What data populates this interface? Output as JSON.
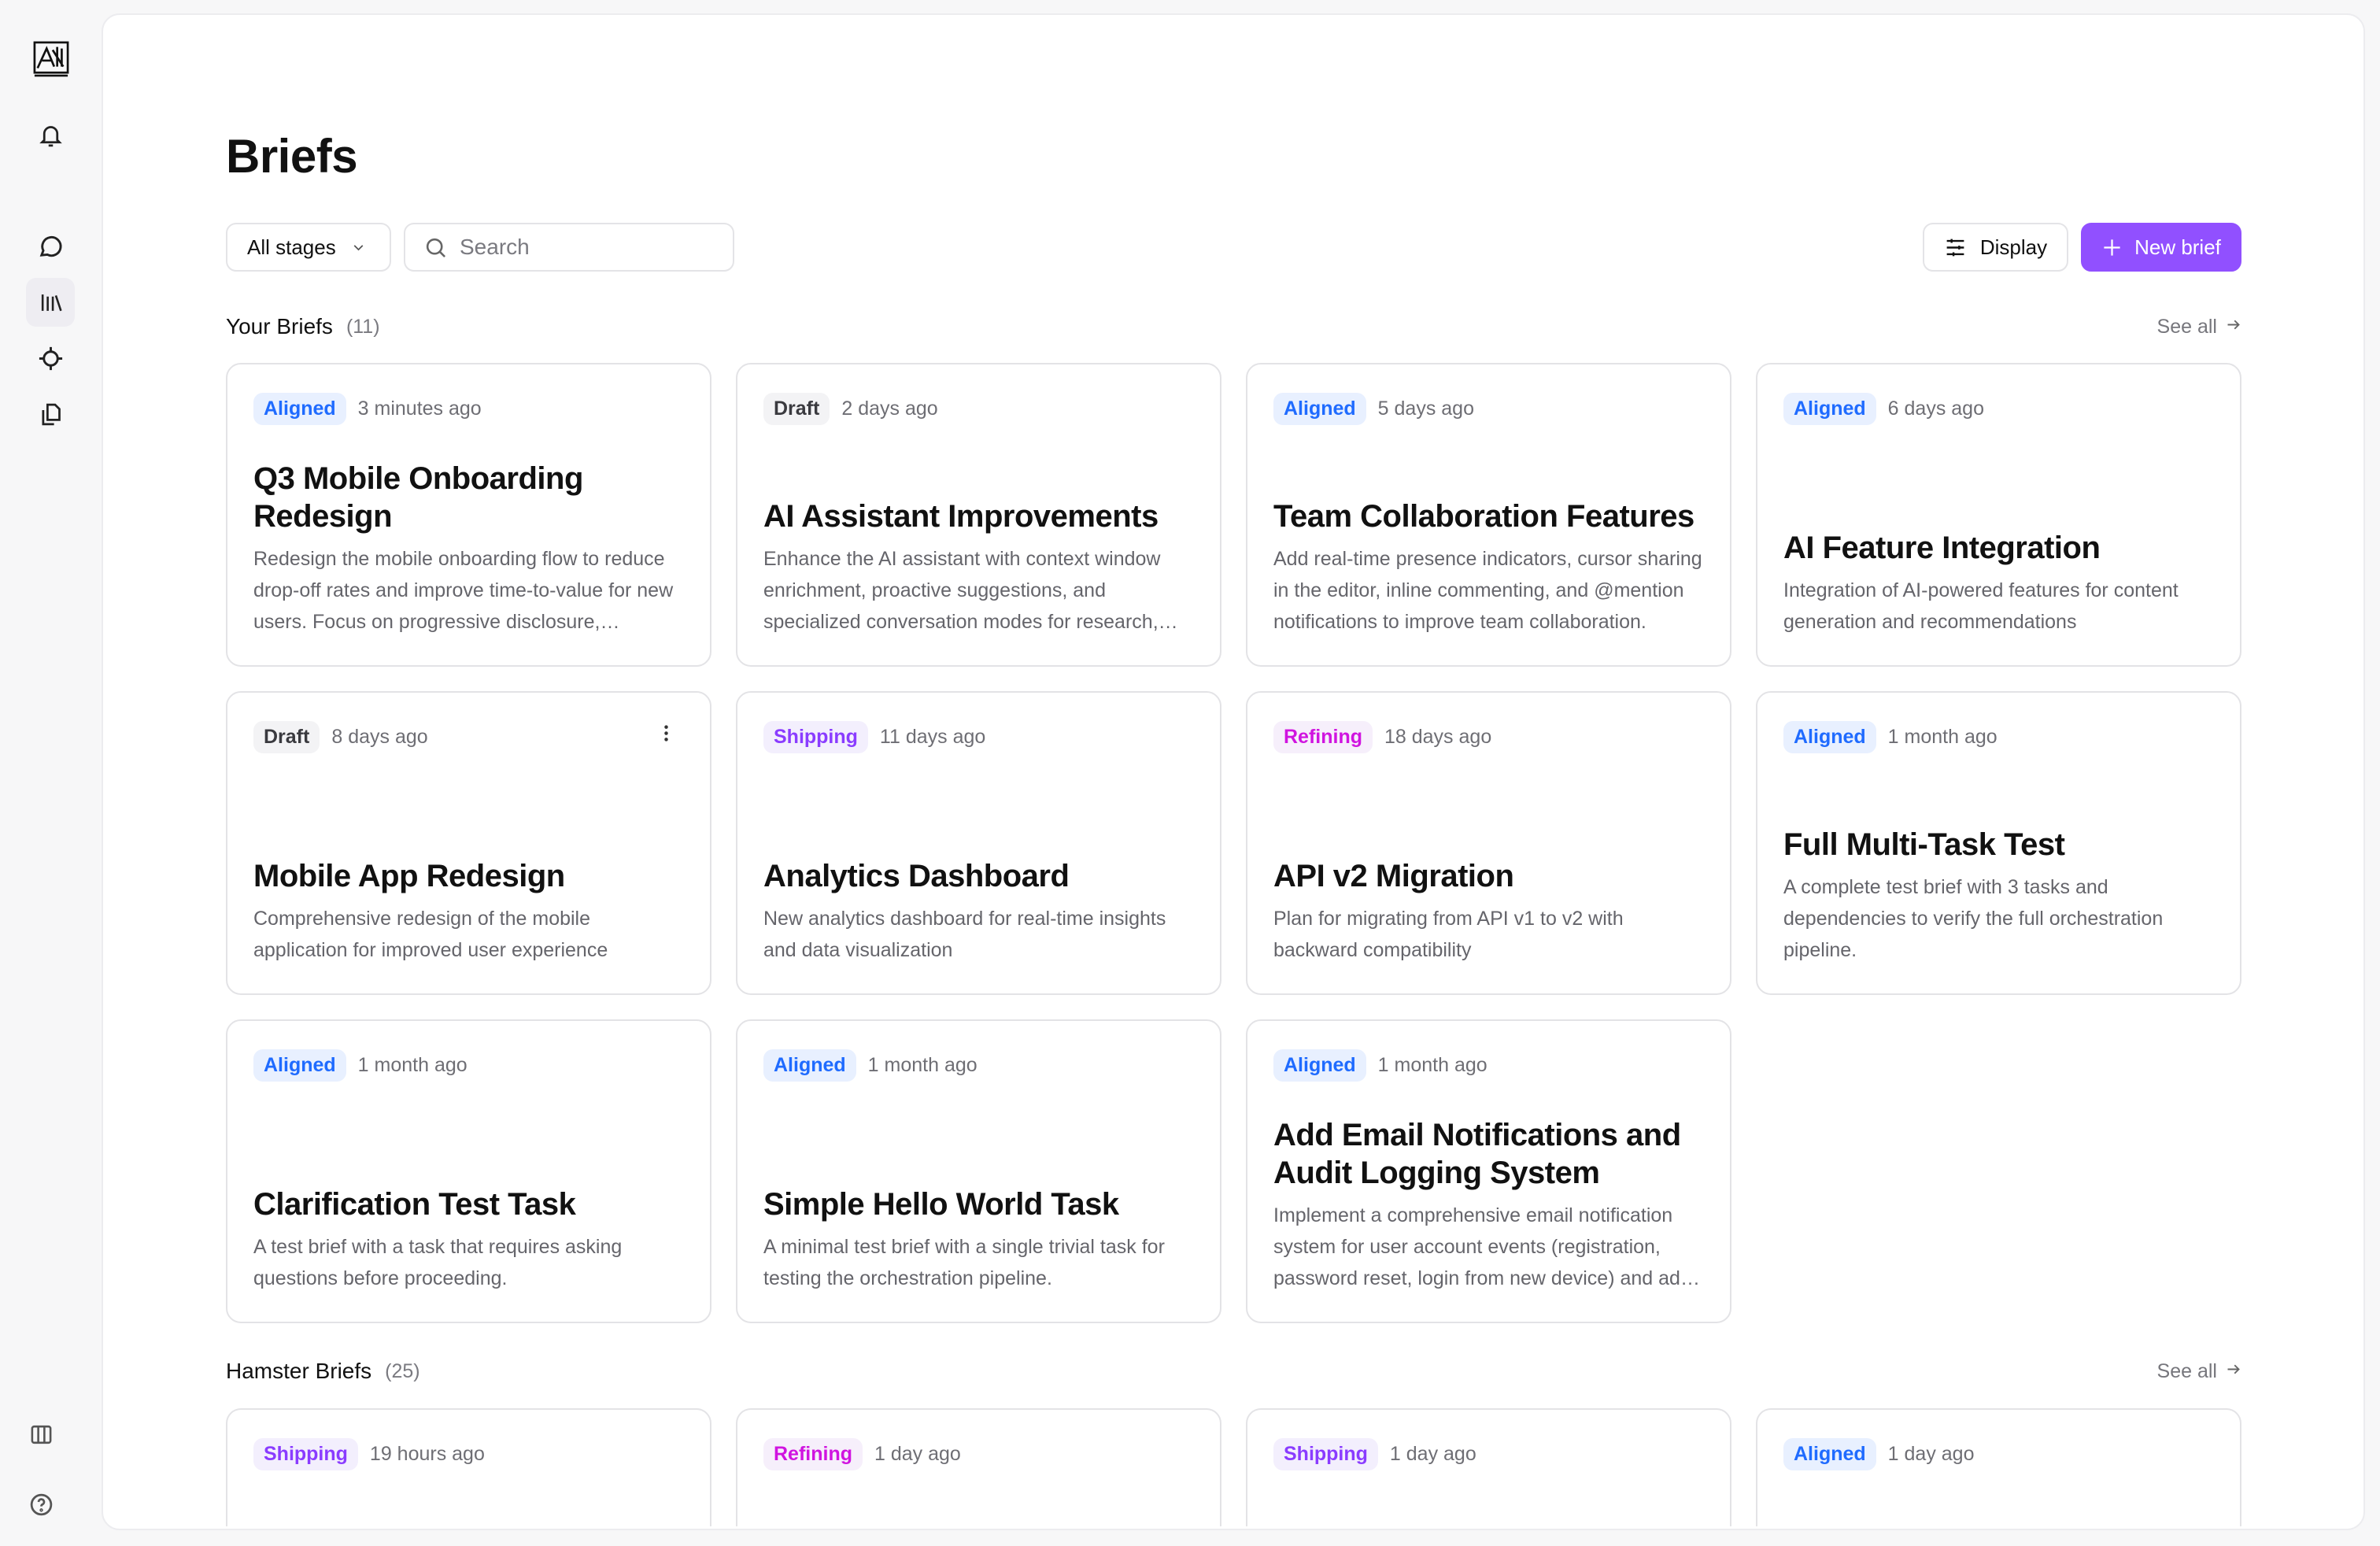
{
  "sidebar": {
    "items": [
      {
        "icon": "bell-icon",
        "label": "Notifications"
      },
      {
        "icon": "chat-icon",
        "label": "Chat"
      },
      {
        "icon": "library-icon",
        "label": "Briefs",
        "active": true
      },
      {
        "icon": "target-icon",
        "label": "Focus"
      },
      {
        "icon": "documents-icon",
        "label": "Documents"
      },
      {
        "icon": "columns-icon",
        "label": "Layout"
      },
      {
        "icon": "help-icon",
        "label": "Help"
      }
    ]
  },
  "header": {
    "title": "Briefs"
  },
  "toolbar": {
    "stage_filter": "All stages",
    "search_placeholder": "Search",
    "display_label": "Display",
    "new_brief_label": "New brief",
    "accent_color": "#9150ff"
  },
  "badge_colors": {
    "Aligned": {
      "fg": "#1f6bff",
      "bg": "#e8f0ff"
    },
    "Draft": {
      "fg": "#3a3a3f",
      "bg": "#f3f3f5"
    },
    "Shipping": {
      "fg": "#8a3cff",
      "bg": "#f3effd"
    },
    "Refining": {
      "fg": "#d014e0",
      "bg": "#f6effb"
    }
  },
  "sections": [
    {
      "title": "Your Briefs",
      "count": "(11)",
      "see_all": "See all",
      "cards": [
        {
          "stage": "Aligned",
          "time": "3 minutes ago",
          "title": "Q3 Mobile Onboarding Redesign",
          "description": "Redesign the mobile onboarding flow to reduce drop-off rates and improve time-to-value for new users. Focus on progressive disclosure, personalization, and reducing friction."
        },
        {
          "stage": "Draft",
          "time": "2 days ago",
          "title": "AI Assistant Improvements",
          "description": "Enhance the AI assistant with context window enrichment, proactive suggestions, and specialized conversation modes for research, writing, and analysis."
        },
        {
          "stage": "Aligned",
          "time": "5 days ago",
          "title": "Team Collaboration Features",
          "description": "Add real-time presence indicators, cursor sharing in the editor, inline commenting, and @mention notifications to improve team collaboration."
        },
        {
          "stage": "Aligned",
          "time": "6 days ago",
          "title": "AI Feature Integration",
          "description": "Integration of AI-powered features for content generation and recommendations"
        },
        {
          "stage": "Draft",
          "time": "8 days ago",
          "title": "Mobile App Redesign",
          "description": "Comprehensive redesign of the mobile application for improved user experience",
          "menu": true
        },
        {
          "stage": "Shipping",
          "time": "11 days ago",
          "title": "Analytics Dashboard",
          "description": "New analytics dashboard for real-time insights and data visualization"
        },
        {
          "stage": "Refining",
          "time": "18 days ago",
          "title": "API v2 Migration",
          "description": "Plan for migrating from API v1 to v2 with backward compatibility"
        },
        {
          "stage": "Aligned",
          "time": "1 month ago",
          "title": "Full Multi-Task Test",
          "description": "A complete test brief with 3 tasks and dependencies to verify the full orchestration pipeline."
        },
        {
          "stage": "Aligned",
          "time": "1 month ago",
          "title": "Clarification Test Task",
          "description": "A test brief with a task that requires asking questions before proceeding."
        },
        {
          "stage": "Aligned",
          "time": "1 month ago",
          "title": "Simple Hello World Task",
          "description": "A minimal test brief with a single trivial task for testing the orchestration pipeline."
        },
        {
          "stage": "Aligned",
          "time": "1 month ago",
          "title": "Add Email Notifications and Audit Logging System",
          "description": "Implement a comprehensive email notification system for user account events (registration, password reset, login from new device) and add audit logging."
        }
      ]
    },
    {
      "title": "Hamster Briefs",
      "count": "(25)",
      "see_all": "See all",
      "cards": [
        {
          "stage": "Shipping",
          "time": "19 hours ago"
        },
        {
          "stage": "Refining",
          "time": "1 day ago"
        },
        {
          "stage": "Shipping",
          "time": "1 day ago"
        },
        {
          "stage": "Aligned",
          "time": "1 day ago"
        }
      ]
    }
  ]
}
